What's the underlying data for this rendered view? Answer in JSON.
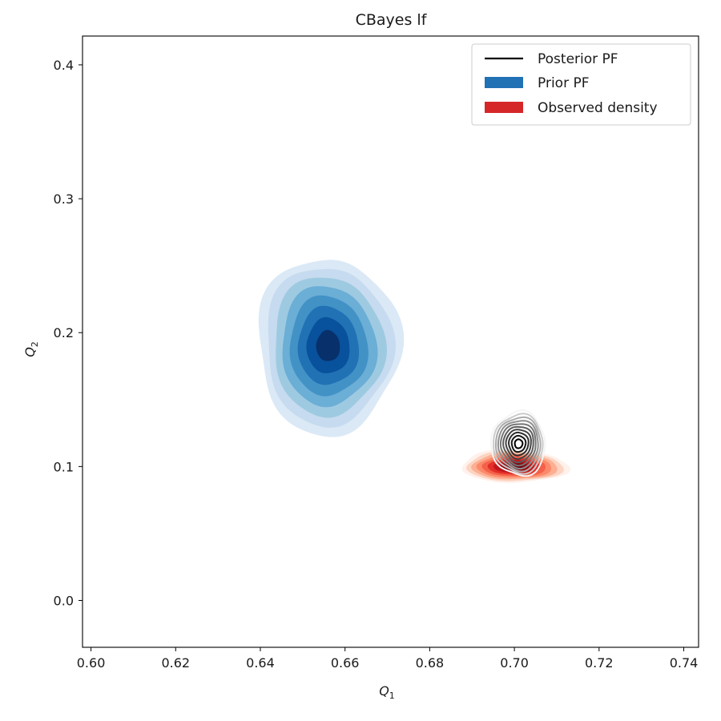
{
  "chart_data": {
    "type": "contour",
    "title": "CBayes lf",
    "xlabel": "Q",
    "xlabel_sub": "1",
    "ylabel": "Q",
    "ylabel_sub": "2",
    "xlim": [
      0.598,
      0.7435
    ],
    "ylim": [
      -0.035,
      0.4215
    ],
    "x_ticks": [
      "0.60",
      "0.62",
      "0.64",
      "0.66",
      "0.68",
      "0.70",
      "0.72",
      "0.74"
    ],
    "y_ticks": [
      "0.0",
      "0.1",
      "0.2",
      "0.3",
      "0.4"
    ],
    "grid": false,
    "legend_position": "top-right",
    "legend": [
      {
        "label": "Posterior PF",
        "kind": "line",
        "color": "#000000"
      },
      {
        "label": "Prior PF",
        "kind": "patch",
        "color": "#2171b5"
      },
      {
        "label": "Observed density",
        "kind": "patch",
        "color": "#d62728"
      }
    ],
    "series": [
      {
        "name": "Prior PF",
        "style": "filled",
        "colormap": "Blues",
        "center": [
          0.656,
          0.19
        ],
        "spread": [
          0.0165,
          0.135
        ],
        "levels": 8
      },
      {
        "name": "Observed density",
        "style": "filled",
        "colormap": "Reds",
        "center": [
          0.7,
          0.1
        ],
        "spread": [
          0.0125,
          0.0245
        ],
        "levels": 9
      },
      {
        "name": "Posterior PF",
        "style": "lines",
        "colormap": "Greys",
        "center": [
          0.701,
          0.117
        ],
        "spread": [
          0.0065,
          0.047
        ],
        "levels": 10
      }
    ]
  }
}
